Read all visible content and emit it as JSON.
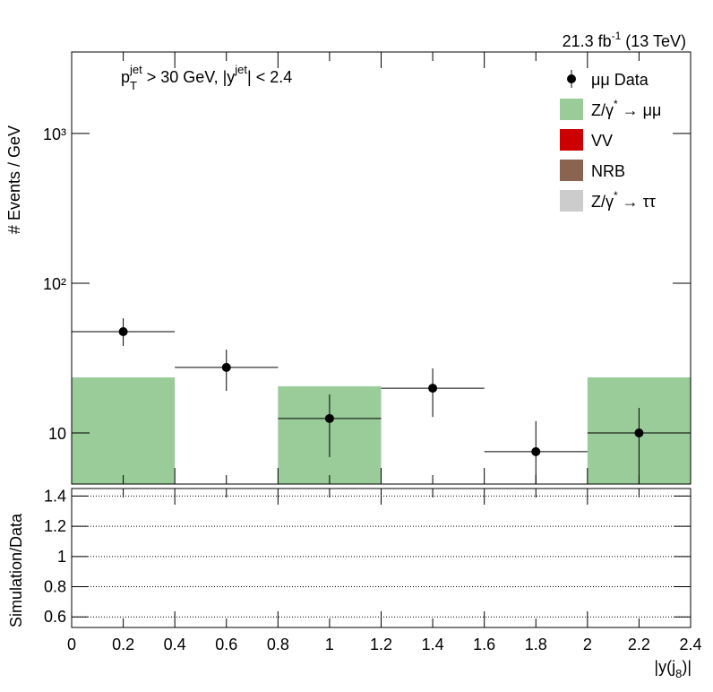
{
  "chart_data": {
    "type": "hist",
    "lumi": [
      "21.3 fb",
      "-1",
      " (13 TeV)"
    ],
    "annotation": [
      "p",
      "T",
      "jet",
      " > 30 GeV,  |y",
      "jet",
      "| < 2.4"
    ],
    "ylabel": "# Events / GeV",
    "xlabel": [
      "|y(j",
      "8",
      ")|"
    ],
    "log_y": true,
    "bins": [
      0,
      0.4,
      0.8,
      1.2,
      1.6,
      2.0,
      2.4
    ],
    "x": [
      0.2,
      0.6,
      1.0,
      1.4,
      1.8,
      2.2
    ],
    "xlim": [
      0,
      2.4
    ],
    "ylim": [
      4.56,
      3500
    ],
    "xticks": [
      0,
      0.2,
      0.4,
      0.6,
      0.8,
      1,
      1.2,
      1.4,
      1.6,
      1.8,
      2,
      2.2,
      2.4
    ],
    "yticks": [
      {
        "value": 10,
        "label": "10"
      },
      {
        "value": 100,
        "label": "10²"
      },
      {
        "value": 1000,
        "label": "10³"
      }
    ],
    "data": {
      "name": "μμ Data",
      "color": "#000000",
      "values": [
        47.5,
        27.4,
        12.5,
        19.9,
        7.5,
        10
      ],
      "err_low": [
        9.4,
        8.3,
        5.6,
        7.1,
        3.5,
        6
      ],
      "err_high": [
        10.8,
        8.6,
        5.6,
        7.1,
        4.5,
        4.7
      ]
    },
    "series": [
      {
        "name": [
          "Z/γ",
          "*",
          " → μμ"
        ],
        "color": "#99cc99",
        "values": [
          23.5,
          null,
          20.5,
          null,
          null,
          23.5
        ]
      },
      {
        "name": [
          "VV"
        ],
        "color": "#cc0000",
        "values": [
          null,
          null,
          null,
          null,
          null,
          null
        ]
      },
      {
        "name": [
          "NRB"
        ],
        "color": "#8b6451",
        "values": [
          null,
          null,
          null,
          null,
          null,
          null
        ]
      },
      {
        "name": [
          "Z/γ",
          "*",
          " → ττ"
        ],
        "color": "#cccccc",
        "values": [
          null,
          null,
          null,
          null,
          null,
          null
        ]
      }
    ],
    "ratio_panel": {
      "ylabel": "Simulation/Data",
      "ylim": [
        0.53,
        1.45
      ],
      "yticks": [
        0.6,
        0.8,
        1,
        1.2,
        1.4
      ],
      "grid": true
    }
  }
}
